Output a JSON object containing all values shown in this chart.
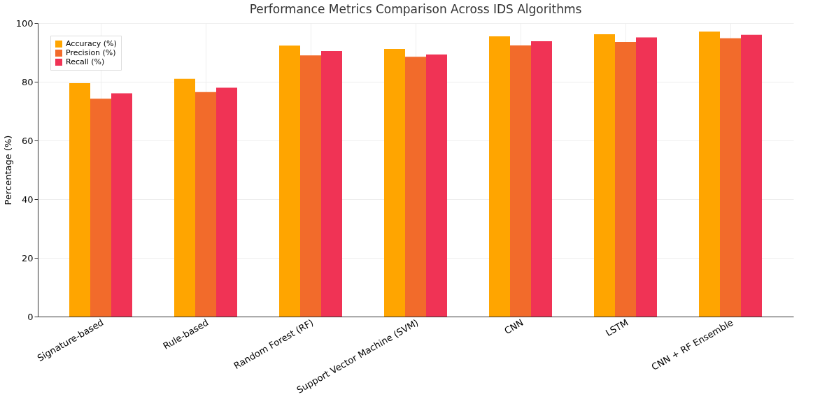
{
  "chart_data": {
    "type": "bar",
    "title": "Performance Metrics Comparison Across IDS Algorithms",
    "ylabel": "Percentage (%)",
    "categories": [
      "Signature-based",
      "Rule-based",
      "Random Forest (RF)",
      "Support Vector Machine (SVM)",
      "CNN",
      "LSTM",
      "CNN + RF Ensemble"
    ],
    "series": [
      {
        "name": "Accuracy (%)",
        "color": "#ffa500",
        "values": [
          79.5,
          81.0,
          92.3,
          91.2,
          95.5,
          96.2,
          97.1
        ]
      },
      {
        "name": "Precision (%)",
        "color": "#f26b2b",
        "values": [
          74.2,
          76.5,
          89.0,
          88.5,
          92.4,
          93.6,
          94.8
        ]
      },
      {
        "name": "Recall (%)",
        "color": "#f03355",
        "values": [
          76.1,
          78.0,
          90.5,
          89.3,
          93.8,
          95.1,
          96.0
        ]
      }
    ],
    "ylim": [
      0,
      100
    ],
    "yticks": [
      0,
      20,
      40,
      60,
      80,
      100
    ],
    "grid": true,
    "legend": "top left"
  }
}
